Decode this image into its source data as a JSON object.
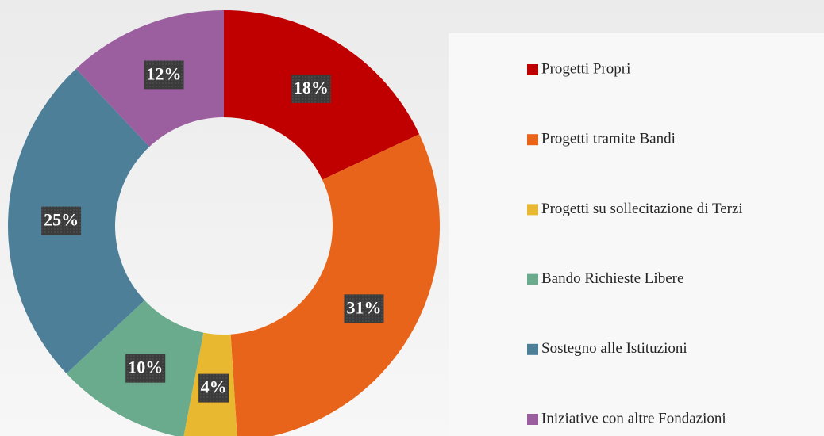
{
  "chart_data": {
    "type": "donut",
    "categories": [
      "Progetti Propri",
      "Progetti tramite Bandi",
      "Progetti su sollecitazione di Terzi",
      "Bando Richieste Libere",
      "Sostegno alle Istituzioni",
      "Iniziative con altre Fondazioni"
    ],
    "values": [
      18,
      31,
      4,
      10,
      25,
      12
    ],
    "value_labels": [
      "18%",
      "31%",
      "4%",
      "10%",
      "25%",
      "12%"
    ],
    "colors": [
      "#c00000",
      "#e8641a",
      "#e8b830",
      "#6aab8e",
      "#4e7f99",
      "#9b5fa0"
    ]
  }
}
